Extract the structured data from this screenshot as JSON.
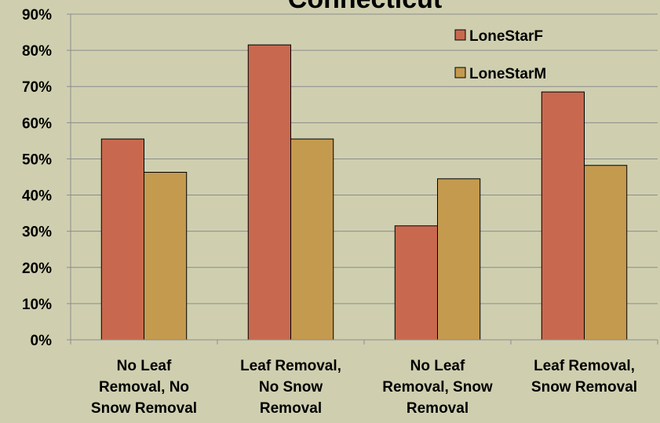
{
  "chart_data": {
    "type": "bar",
    "title": "Connecticut",
    "categories": [
      "No Leaf Removal, No Snow Removal",
      "Leaf Removal, No Snow Removal",
      "No Leaf Removal, Snow Removal",
      "Leaf Removal, Snow Removal"
    ],
    "series": [
      {
        "name": "LoneStarF",
        "color": "#c8694f",
        "values": [
          55.5,
          81.5,
          31.5,
          68.5
        ]
      },
      {
        "name": "LoneStarM",
        "color": "#c49a4f",
        "values": [
          46.3,
          55.5,
          44.5,
          48.2
        ]
      }
    ],
    "ylim": [
      0,
      90
    ],
    "yticks": [
      {
        "value": 0,
        "label": "0%"
      },
      {
        "value": 10,
        "label": "10%"
      },
      {
        "value": 20,
        "label": "20%"
      },
      {
        "value": 30,
        "label": "30%"
      },
      {
        "value": 40,
        "label": "40%"
      },
      {
        "value": 50,
        "label": "50%"
      },
      {
        "value": 60,
        "label": "60%"
      },
      {
        "value": 70,
        "label": "70%"
      },
      {
        "value": 80,
        "label": "80%"
      },
      {
        "value": 90,
        "label": "90%"
      }
    ],
    "grid": true,
    "legend": "top-right"
  }
}
